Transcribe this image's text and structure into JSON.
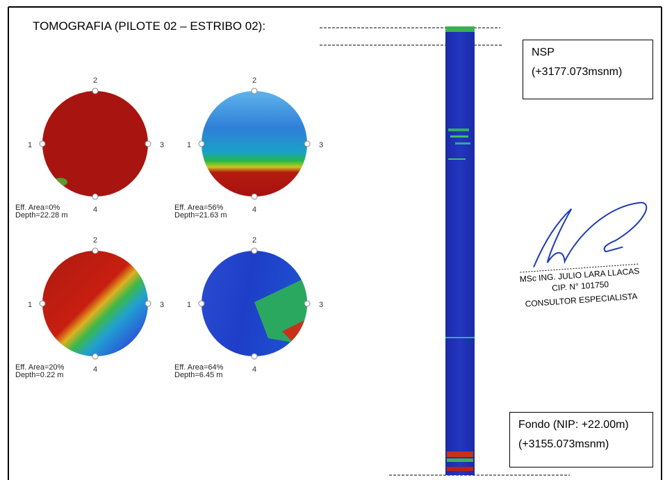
{
  "title": "TOMOGRAFIA (PILOTE 02 – ESTRIBO 02):",
  "tomograms": [
    {
      "ports": [
        "1",
        "2",
        "3",
        "4"
      ],
      "eff_area": "Eff. Area=0%",
      "depth": "Depth=22.28 m"
    },
    {
      "ports": [
        "1",
        "2",
        "3",
        "4"
      ],
      "eff_area": "Eff. Area=56%",
      "depth": "Depth=21.63 m"
    },
    {
      "ports": [
        "1",
        "2",
        "3",
        "4"
      ],
      "eff_area": "Eff. Area=20%",
      "depth": "Depth=0.22 m"
    },
    {
      "ports": [
        "1",
        "2",
        "3",
        "4"
      ],
      "eff_area": "Eff. Area=64%",
      "depth": "Depth=6.45 m"
    }
  ],
  "nsp": {
    "label": "NSP",
    "elevation": "(+3177.073msnm)"
  },
  "bottom": {
    "label": "Fondo (NIP: +22.00m)",
    "elevation": "(+3155.073msnm)"
  },
  "stamp": {
    "name": "MSc ING. JULIO LARA LLACAS",
    "cip": "CIP. N° 101750",
    "role": "CONSULTOR ESPECIALISTA"
  }
}
